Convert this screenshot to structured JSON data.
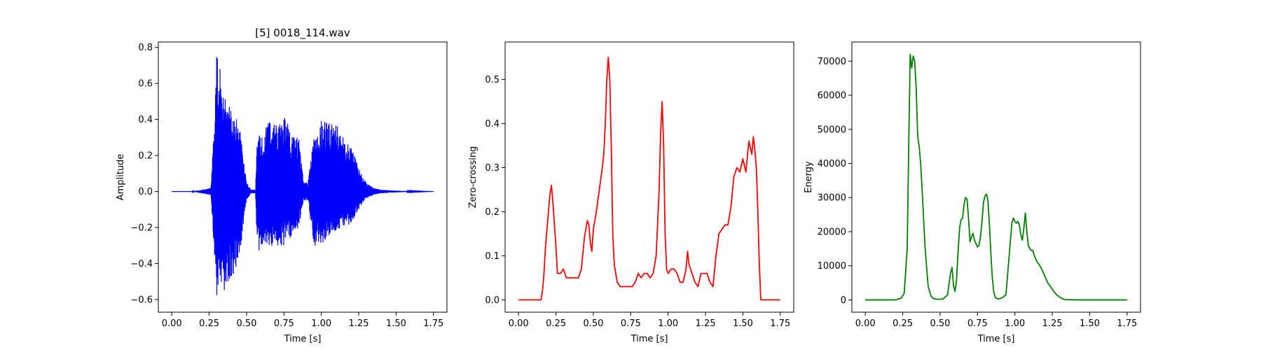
{
  "chart_data": [
    {
      "type": "line",
      "id": "waveform",
      "title": "[5] 0018_114.wav",
      "xlabel": "Time [s]",
      "ylabel": "Amplitude",
      "xlim": [
        -0.09,
        1.84
      ],
      "ylim": [
        -0.67,
        0.83
      ],
      "xticks": [
        0.0,
        0.25,
        0.5,
        0.75,
        1.0,
        1.25,
        1.5,
        1.75
      ],
      "xtick_labels": [
        "0.00",
        "0.25",
        "0.50",
        "0.75",
        "1.00",
        "1.25",
        "1.50",
        "1.75"
      ],
      "yticks": [
        -0.6,
        -0.4,
        -0.2,
        0.0,
        0.2,
        0.4,
        0.6,
        0.8
      ],
      "ytick_labels": [
        "−0.6",
        "−0.4",
        "−0.2",
        "0.0",
        "0.2",
        "0.4",
        "0.6",
        "0.8"
      ],
      "color": "#0000ff",
      "envelope": {
        "t": [
          0.0,
          0.13,
          0.2,
          0.26,
          0.28,
          0.3,
          0.32,
          0.35,
          0.4,
          0.45,
          0.5,
          0.53,
          0.56,
          0.57,
          0.6,
          0.65,
          0.7,
          0.75,
          0.8,
          0.85,
          0.88,
          0.91,
          0.95,
          1.0,
          1.05,
          1.1,
          1.15,
          1.2,
          1.25,
          1.3,
          1.35,
          1.4,
          1.5,
          1.6,
          1.75
        ],
        "upper": [
          0.0,
          0.0,
          0.01,
          0.02,
          0.3,
          0.76,
          0.7,
          0.55,
          0.45,
          0.38,
          0.05,
          0.01,
          0.01,
          0.34,
          0.3,
          0.41,
          0.37,
          0.42,
          0.33,
          0.3,
          0.06,
          0.05,
          0.3,
          0.4,
          0.38,
          0.38,
          0.3,
          0.26,
          0.14,
          0.05,
          0.02,
          0.01,
          0.005,
          0.002,
          0.0
        ],
        "lower": [
          0.0,
          0.0,
          -0.01,
          -0.02,
          -0.3,
          -0.6,
          -0.58,
          -0.55,
          -0.48,
          -0.4,
          -0.05,
          -0.01,
          -0.01,
          -0.35,
          -0.3,
          -0.3,
          -0.3,
          -0.3,
          -0.25,
          -0.2,
          -0.05,
          -0.05,
          -0.32,
          -0.3,
          -0.26,
          -0.22,
          -0.2,
          -0.18,
          -0.1,
          -0.04,
          -0.02,
          -0.01,
          -0.005,
          -0.002,
          0.0
        ]
      }
    },
    {
      "type": "line",
      "id": "zero-crossing",
      "title": "",
      "xlabel": "Time [s]",
      "ylabel": "Zero-crossing",
      "xlim": [
        -0.09,
        1.84
      ],
      "ylim": [
        -0.028,
        0.585
      ],
      "xticks": [
        0.0,
        0.25,
        0.5,
        0.75,
        1.0,
        1.25,
        1.5,
        1.75
      ],
      "xtick_labels": [
        "0.00",
        "0.25",
        "0.50",
        "0.75",
        "1.00",
        "1.25",
        "1.50",
        "1.75"
      ],
      "yticks": [
        0.0,
        0.1,
        0.2,
        0.3,
        0.4,
        0.5
      ],
      "ytick_labels": [
        "0.0",
        "0.1",
        "0.2",
        "0.3",
        "0.4",
        "0.5"
      ],
      "color": "#ff0000",
      "x": [
        0.0,
        0.15,
        0.16,
        0.17,
        0.18,
        0.19,
        0.2,
        0.21,
        0.22,
        0.23,
        0.24,
        0.25,
        0.26,
        0.28,
        0.3,
        0.32,
        0.34,
        0.36,
        0.38,
        0.4,
        0.42,
        0.44,
        0.46,
        0.47,
        0.48,
        0.49,
        0.5,
        0.52,
        0.54,
        0.56,
        0.57,
        0.58,
        0.59,
        0.6,
        0.61,
        0.62,
        0.63,
        0.64,
        0.66,
        0.68,
        0.7,
        0.72,
        0.74,
        0.76,
        0.78,
        0.8,
        0.82,
        0.84,
        0.86,
        0.88,
        0.9,
        0.92,
        0.94,
        0.95,
        0.96,
        0.97,
        0.98,
        0.99,
        1.0,
        1.02,
        1.04,
        1.06,
        1.08,
        1.1,
        1.12,
        1.13,
        1.14,
        1.16,
        1.18,
        1.2,
        1.22,
        1.24,
        1.26,
        1.28,
        1.3,
        1.32,
        1.34,
        1.36,
        1.38,
        1.4,
        1.42,
        1.44,
        1.46,
        1.48,
        1.5,
        1.52,
        1.54,
        1.56,
        1.57,
        1.58,
        1.59,
        1.6,
        1.61,
        1.62,
        1.75
      ],
      "y": [
        0.0,
        0.0,
        0.02,
        0.06,
        0.12,
        0.16,
        0.2,
        0.24,
        0.26,
        0.22,
        0.17,
        0.12,
        0.06,
        0.06,
        0.07,
        0.05,
        0.05,
        0.05,
        0.05,
        0.05,
        0.07,
        0.14,
        0.18,
        0.17,
        0.13,
        0.11,
        0.16,
        0.2,
        0.25,
        0.3,
        0.33,
        0.4,
        0.5,
        0.55,
        0.5,
        0.35,
        0.15,
        0.08,
        0.04,
        0.03,
        0.03,
        0.03,
        0.03,
        0.03,
        0.04,
        0.06,
        0.05,
        0.06,
        0.06,
        0.05,
        0.06,
        0.1,
        0.25,
        0.38,
        0.45,
        0.35,
        0.15,
        0.07,
        0.06,
        0.07,
        0.07,
        0.06,
        0.04,
        0.04,
        0.07,
        0.11,
        0.08,
        0.06,
        0.04,
        0.03,
        0.06,
        0.06,
        0.06,
        0.04,
        0.03,
        0.1,
        0.15,
        0.16,
        0.17,
        0.17,
        0.21,
        0.28,
        0.3,
        0.29,
        0.32,
        0.29,
        0.36,
        0.33,
        0.37,
        0.34,
        0.3,
        0.2,
        0.08,
        0.0,
        0.0
      ]
    },
    {
      "type": "line",
      "id": "energy",
      "title": "",
      "xlabel": "Time [s]",
      "ylabel": "Energy",
      "xlim": [
        -0.09,
        1.84
      ],
      "ylim": [
        -3600,
        75600
      ],
      "xticks": [
        0.0,
        0.25,
        0.5,
        0.75,
        1.0,
        1.25,
        1.5,
        1.75
      ],
      "xtick_labels": [
        "0.00",
        "0.25",
        "0.50",
        "0.75",
        "1.00",
        "1.25",
        "1.50",
        "1.75"
      ],
      "yticks": [
        0,
        10000,
        20000,
        30000,
        40000,
        50000,
        60000,
        70000
      ],
      "ytick_labels": [
        "0",
        "10000",
        "20000",
        "30000",
        "40000",
        "50000",
        "60000",
        "70000"
      ],
      "color": "#008000",
      "x": [
        0.0,
        0.2,
        0.24,
        0.26,
        0.28,
        0.29,
        0.3,
        0.31,
        0.32,
        0.33,
        0.34,
        0.35,
        0.36,
        0.37,
        0.38,
        0.4,
        0.42,
        0.44,
        0.46,
        0.48,
        0.5,
        0.52,
        0.55,
        0.57,
        0.58,
        0.59,
        0.6,
        0.61,
        0.62,
        0.63,
        0.64,
        0.65,
        0.66,
        0.67,
        0.68,
        0.69,
        0.7,
        0.71,
        0.72,
        0.73,
        0.74,
        0.75,
        0.76,
        0.77,
        0.78,
        0.79,
        0.8,
        0.81,
        0.82,
        0.83,
        0.84,
        0.85,
        0.86,
        0.87,
        0.88,
        0.89,
        0.9,
        0.92,
        0.94,
        0.96,
        0.98,
        0.99,
        1.0,
        1.01,
        1.02,
        1.03,
        1.04,
        1.05,
        1.06,
        1.07,
        1.08,
        1.09,
        1.1,
        1.11,
        1.12,
        1.13,
        1.14,
        1.15,
        1.16,
        1.18,
        1.2,
        1.22,
        1.24,
        1.26,
        1.28,
        1.3,
        1.32,
        1.34,
        1.4,
        1.75
      ],
      "y": [
        0,
        0,
        500,
        2000,
        15000,
        45000,
        72000,
        68000,
        71500,
        70000,
        62000,
        48000,
        45000,
        40000,
        32000,
        15000,
        4000,
        1000,
        300,
        200,
        200,
        300,
        1500,
        8000,
        9500,
        4000,
        2500,
        6000,
        14000,
        21000,
        23500,
        24000,
        28000,
        30000,
        29500,
        24000,
        17000,
        18500,
        19500,
        17500,
        16500,
        15500,
        16000,
        18500,
        23000,
        28500,
        30500,
        31000,
        29000,
        22000,
        13000,
        6000,
        2000,
        700,
        400,
        300,
        400,
        800,
        1500,
        12000,
        22500,
        24000,
        23000,
        22500,
        23000,
        22000,
        19000,
        17500,
        21000,
        25500,
        20000,
        16000,
        15000,
        14500,
        14500,
        13000,
        12000,
        11000,
        10500,
        9000,
        7000,
        5000,
        3800,
        2500,
        1500,
        800,
        300,
        100,
        0,
        0
      ]
    }
  ]
}
